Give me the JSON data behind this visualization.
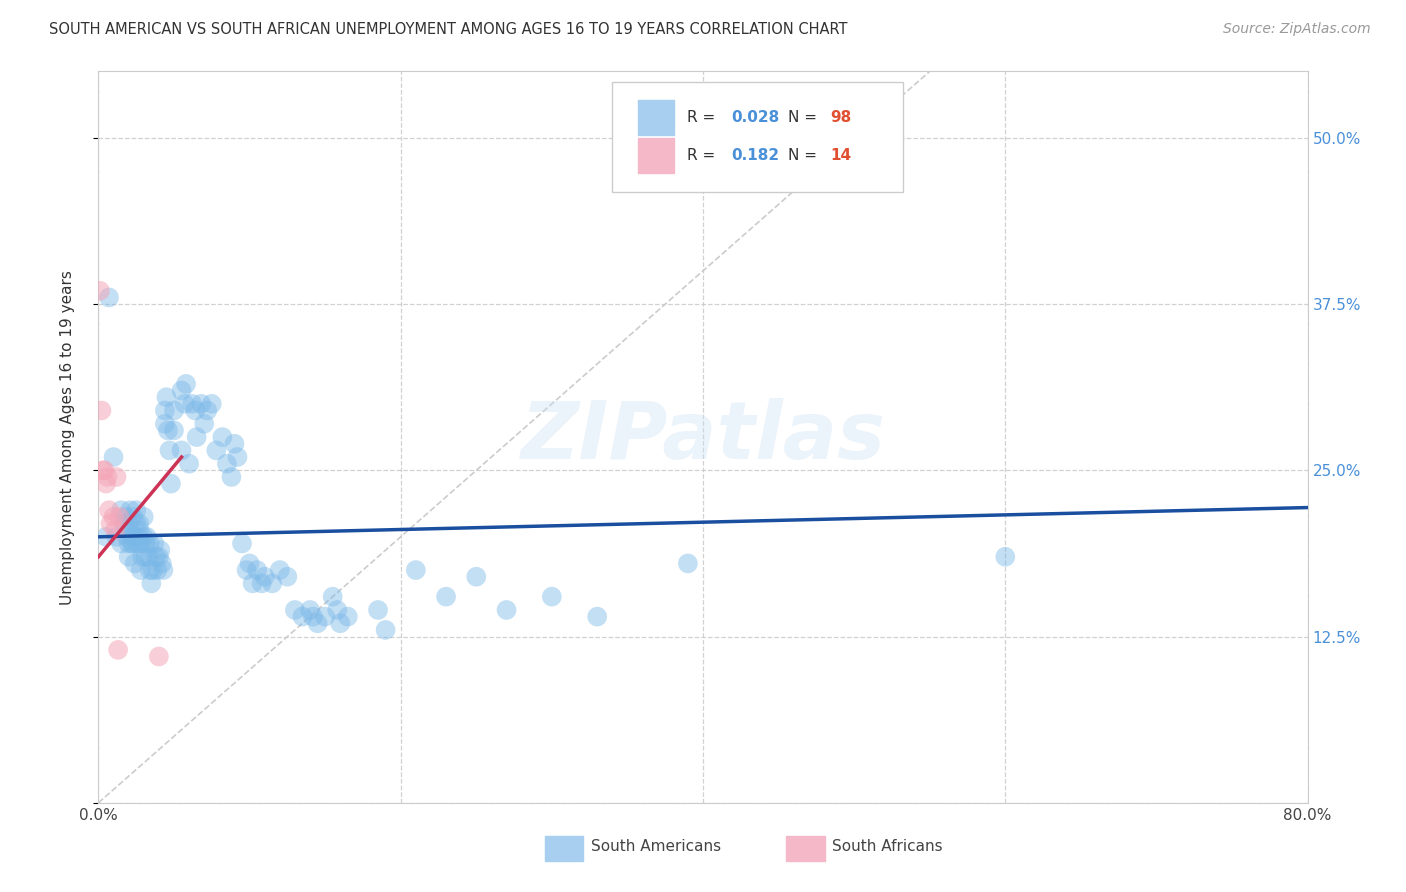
{
  "title": "SOUTH AMERICAN VS SOUTH AFRICAN UNEMPLOYMENT AMONG AGES 16 TO 19 YEARS CORRELATION CHART",
  "source": "Source: ZipAtlas.com",
  "ylabel_label": "Unemployment Among Ages 16 to 19 years",
  "xlim": [
    0.0,
    0.8
  ],
  "ylim": [
    0.0,
    0.55
  ],
  "watermark": "ZIPatlas",
  "blue_color": "#7ab8e8",
  "pink_color": "#f4a6b8",
  "blue_line_color": "#1a4fa0",
  "pink_line_color": "#cc3355",
  "blue_scatter": [
    [
      0.005,
      0.2
    ],
    [
      0.007,
      0.38
    ],
    [
      0.01,
      0.26
    ],
    [
      0.012,
      0.2
    ],
    [
      0.015,
      0.22
    ],
    [
      0.015,
      0.195
    ],
    [
      0.017,
      0.21
    ],
    [
      0.018,
      0.215
    ],
    [
      0.019,
      0.2
    ],
    [
      0.02,
      0.21
    ],
    [
      0.02,
      0.195
    ],
    [
      0.02,
      0.185
    ],
    [
      0.021,
      0.22
    ],
    [
      0.021,
      0.205
    ],
    [
      0.022,
      0.195
    ],
    [
      0.022,
      0.2
    ],
    [
      0.023,
      0.215
    ],
    [
      0.023,
      0.195
    ],
    [
      0.024,
      0.18
    ],
    [
      0.024,
      0.2
    ],
    [
      0.025,
      0.22
    ],
    [
      0.025,
      0.21
    ],
    [
      0.026,
      0.2
    ],
    [
      0.026,
      0.195
    ],
    [
      0.027,
      0.21
    ],
    [
      0.027,
      0.205
    ],
    [
      0.028,
      0.195
    ],
    [
      0.028,
      0.175
    ],
    [
      0.029,
      0.185
    ],
    [
      0.03,
      0.215
    ],
    [
      0.03,
      0.2
    ],
    [
      0.031,
      0.185
    ],
    [
      0.031,
      0.195
    ],
    [
      0.032,
      0.2
    ],
    [
      0.033,
      0.185
    ],
    [
      0.034,
      0.195
    ],
    [
      0.034,
      0.175
    ],
    [
      0.035,
      0.165
    ],
    [
      0.036,
      0.175
    ],
    [
      0.037,
      0.195
    ],
    [
      0.038,
      0.185
    ],
    [
      0.039,
      0.175
    ],
    [
      0.04,
      0.185
    ],
    [
      0.041,
      0.19
    ],
    [
      0.042,
      0.18
    ],
    [
      0.043,
      0.175
    ],
    [
      0.044,
      0.285
    ],
    [
      0.044,
      0.295
    ],
    [
      0.045,
      0.305
    ],
    [
      0.046,
      0.28
    ],
    [
      0.047,
      0.265
    ],
    [
      0.048,
      0.24
    ],
    [
      0.05,
      0.28
    ],
    [
      0.05,
      0.295
    ],
    [
      0.055,
      0.265
    ],
    [
      0.055,
      0.31
    ],
    [
      0.057,
      0.3
    ],
    [
      0.058,
      0.315
    ],
    [
      0.06,
      0.255
    ],
    [
      0.062,
      0.3
    ],
    [
      0.064,
      0.295
    ],
    [
      0.065,
      0.275
    ],
    [
      0.068,
      0.3
    ],
    [
      0.07,
      0.285
    ],
    [
      0.072,
      0.295
    ],
    [
      0.075,
      0.3
    ],
    [
      0.078,
      0.265
    ],
    [
      0.082,
      0.275
    ],
    [
      0.085,
      0.255
    ],
    [
      0.088,
      0.245
    ],
    [
      0.09,
      0.27
    ],
    [
      0.092,
      0.26
    ],
    [
      0.095,
      0.195
    ],
    [
      0.098,
      0.175
    ],
    [
      0.1,
      0.18
    ],
    [
      0.102,
      0.165
    ],
    [
      0.105,
      0.175
    ],
    [
      0.108,
      0.165
    ],
    [
      0.11,
      0.17
    ],
    [
      0.115,
      0.165
    ],
    [
      0.12,
      0.175
    ],
    [
      0.125,
      0.17
    ],
    [
      0.13,
      0.145
    ],
    [
      0.135,
      0.14
    ],
    [
      0.14,
      0.145
    ],
    [
      0.142,
      0.14
    ],
    [
      0.145,
      0.135
    ],
    [
      0.15,
      0.14
    ],
    [
      0.155,
      0.155
    ],
    [
      0.158,
      0.145
    ],
    [
      0.16,
      0.135
    ],
    [
      0.165,
      0.14
    ],
    [
      0.185,
      0.145
    ],
    [
      0.19,
      0.13
    ],
    [
      0.21,
      0.175
    ],
    [
      0.23,
      0.155
    ],
    [
      0.25,
      0.17
    ],
    [
      0.27,
      0.145
    ],
    [
      0.3,
      0.155
    ],
    [
      0.33,
      0.14
    ],
    [
      0.39,
      0.18
    ],
    [
      0.6,
      0.185
    ]
  ],
  "pink_scatter": [
    [
      0.001,
      0.385
    ],
    [
      0.002,
      0.295
    ],
    [
      0.003,
      0.25
    ],
    [
      0.004,
      0.25
    ],
    [
      0.005,
      0.24
    ],
    [
      0.006,
      0.245
    ],
    [
      0.007,
      0.22
    ],
    [
      0.008,
      0.21
    ],
    [
      0.01,
      0.215
    ],
    [
      0.011,
      0.205
    ],
    [
      0.012,
      0.245
    ],
    [
      0.013,
      0.115
    ],
    [
      0.014,
      0.215
    ],
    [
      0.04,
      0.11
    ]
  ]
}
